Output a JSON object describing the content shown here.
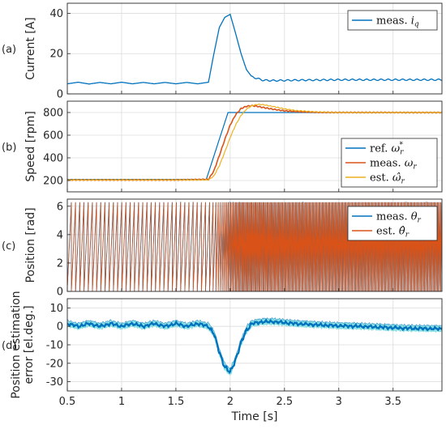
{
  "chart_data": [
    {
      "type": "line",
      "tag": "(a)",
      "ylabel": "Current [A]",
      "xlim": [
        0.5,
        3.95
      ],
      "ylim": [
        0,
        45
      ],
      "yticks": [
        0,
        20,
        40
      ],
      "grid": true,
      "legend_position": "top-right",
      "series": [
        {
          "name": "meas. i_q",
          "legend_label": "meas. ",
          "legend_symbol": "i",
          "legend_sub": "q",
          "color": "#0072bd",
          "x": [
            0.5,
            0.6,
            0.7,
            0.8,
            0.9,
            1.0,
            1.1,
            1.2,
            1.3,
            1.4,
            1.5,
            1.6,
            1.7,
            1.8,
            1.85,
            1.9,
            1.95,
            2.0,
            2.05,
            2.1,
            2.15,
            2.2,
            2.3,
            2.4,
            2.6,
            2.8,
            3.0,
            3.2,
            3.4,
            3.6,
            3.8,
            3.95
          ],
          "y": [
            5,
            5.8,
            4.9,
            5.7,
            5,
            5.8,
            5,
            5.7,
            5,
            5.7,
            5,
            5.7,
            5,
            5.8,
            20,
            33,
            38,
            39.5,
            30,
            20,
            12,
            8.5,
            6.8,
            6.6,
            6.8,
            6.9,
            7,
            7,
            7,
            7,
            7,
            7
          ]
        }
      ]
    },
    {
      "type": "line",
      "tag": "(b)",
      "ylabel": "Speed [rpm]",
      "xlim": [
        0.5,
        3.95
      ],
      "ylim": [
        100,
        900
      ],
      "yticks": [
        200,
        400,
        600,
        800
      ],
      "grid": true,
      "legend_position": "bottom-right",
      "series": [
        {
          "name": "ref. ω_r*",
          "legend_label": "ref. ",
          "legend_symbol": "ω",
          "legend_sub": "r",
          "legend_sup": "*",
          "color": "#0072bd",
          "x": [
            0.5,
            1.78,
            1.98,
            3.95
          ],
          "y": [
            210,
            210,
            800,
            800
          ]
        },
        {
          "name": "meas. ω_r",
          "legend_label": "meas. ",
          "legend_symbol": "ω",
          "legend_sub": "r",
          "color": "#d95319",
          "x": [
            0.5,
            1.0,
            1.5,
            1.8,
            1.85,
            1.9,
            1.95,
            2.0,
            2.05,
            2.1,
            2.15,
            2.2,
            2.25,
            2.3,
            2.4,
            2.5,
            2.6,
            2.8,
            3.0,
            3.95
          ],
          "y": [
            205,
            205,
            205,
            210,
            285,
            420,
            560,
            690,
            780,
            835,
            855,
            860,
            855,
            845,
            828,
            815,
            808,
            802,
            800,
            800
          ]
        },
        {
          "name": "est. ω̂_r",
          "legend_label": "est. ",
          "legend_symbol": "ω̂",
          "legend_sub": "r",
          "color": "#edb120",
          "x": [
            0.5,
            1.0,
            1.5,
            1.8,
            1.85,
            1.9,
            1.95,
            2.0,
            2.05,
            2.1,
            2.15,
            2.2,
            2.25,
            2.3,
            2.4,
            2.5,
            2.6,
            2.8,
            3.0,
            3.95
          ],
          "y": [
            205,
            205,
            205,
            205,
            240,
            330,
            450,
            580,
            690,
            775,
            830,
            860,
            872,
            870,
            852,
            832,
            818,
            805,
            800,
            800
          ]
        }
      ]
    },
    {
      "type": "line",
      "tag": "(c)",
      "ylabel": "Position [rad]",
      "xlim": [
        0.5,
        3.95
      ],
      "ylim": [
        0,
        6.5
      ],
      "yticks": [
        0,
        2,
        4,
        6
      ],
      "grid": true,
      "legend_position": "top-right",
      "sawtooth_max": 6.28,
      "series": [
        {
          "name": "meas. θ_r",
          "legend_label": "meas. ",
          "legend_symbol": "θ",
          "legend_sub": "r",
          "color": "#0072bd"
        },
        {
          "name": "est. θ̂_r",
          "legend_label": "est. ",
          "legend_symbol": "θ̂",
          "legend_sub": "r",
          "color": "#d95319"
        }
      ]
    },
    {
      "type": "line",
      "tag": "(d)",
      "ylabel": [
        "Position estimation",
        "error [el.deg.]"
      ],
      "xlabel": "Time [s]",
      "xlim": [
        0.5,
        3.95
      ],
      "ylim": [
        -35,
        15
      ],
      "yticks": [
        -30,
        -20,
        -10,
        0,
        10
      ],
      "xticks": [
        0.5,
        1,
        1.5,
        2,
        2.5,
        3,
        3.5
      ],
      "xtick_labels": [
        "0.5",
        "1",
        "1.5",
        "2",
        "2.5",
        "3",
        "3.5"
      ],
      "grid": true,
      "series": [
        {
          "name": "position estimation error",
          "color": "#0072bd",
          "band_color": "#7fdde0",
          "x": [
            0.5,
            0.6,
            0.7,
            0.8,
            0.9,
            1.0,
            1.1,
            1.2,
            1.3,
            1.4,
            1.5,
            1.6,
            1.7,
            1.8,
            1.85,
            1.9,
            1.95,
            2.0,
            2.05,
            2.1,
            2.15,
            2.2,
            2.3,
            2.4,
            2.6,
            2.8,
            3.0,
            3.2,
            3.4,
            3.6,
            3.8,
            3.95
          ],
          "y": [
            1.5,
            0,
            1.5,
            0,
            1.5,
            0,
            1.5,
            0,
            1.5,
            0,
            1.5,
            0,
            1.5,
            0,
            -4,
            -14,
            -22,
            -25,
            -18,
            -9,
            -2,
            1.5,
            2.5,
            2.5,
            1.5,
            0.8,
            0.3,
            0,
            -0.5,
            -1,
            -1.2,
            -1.3
          ]
        }
      ]
    }
  ]
}
